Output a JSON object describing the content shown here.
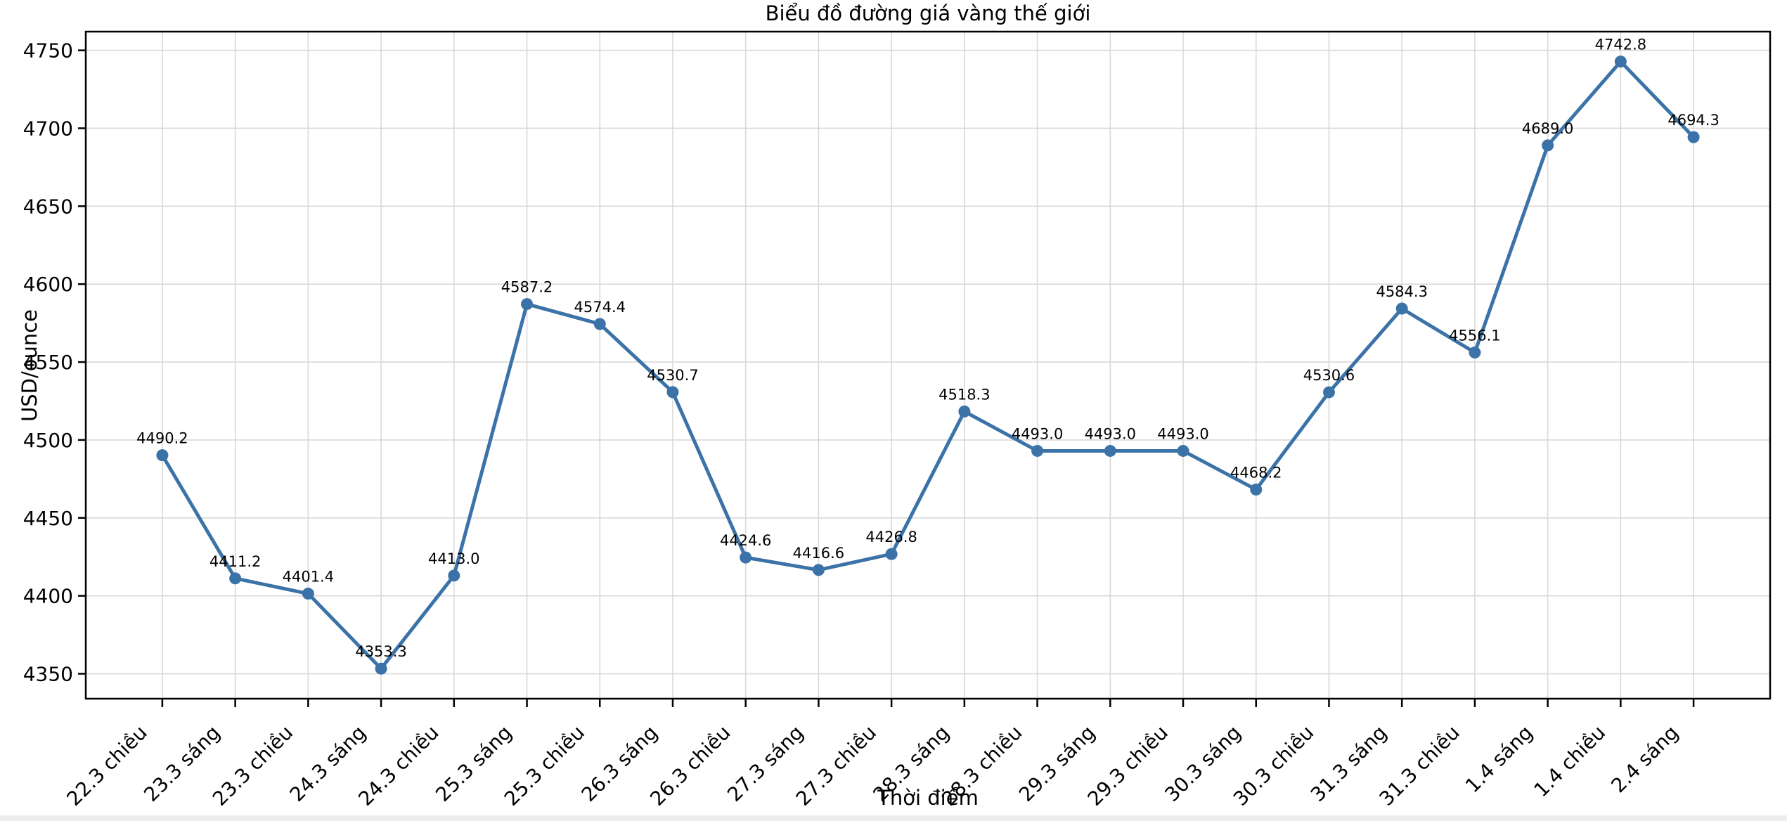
{
  "chart_data": {
    "type": "line",
    "title": "Biểu đồ đường giá vàng thế giới",
    "xlabel": "Thời điểm",
    "ylabel": "USD/ounce",
    "categories": [
      "22.3 chiều",
      "23.3 sáng",
      "23.3 chiều",
      "24.3 sáng",
      "24.3 chiều",
      "25.3 sáng",
      "25.3 chiều",
      "26.3 sáng",
      "26.3 chiều",
      "27.3 sáng",
      "27.3 chiều",
      "28.3 sáng",
      "28.3 chiều",
      "29.3 sáng",
      "29.3 chiều",
      "30.3 sáng",
      "30.3 chiều",
      "31.3 sáng",
      "31.3 chiều",
      "1.4 sáng",
      "1.4 chiều",
      "2.4 sáng"
    ],
    "values": [
      4490.2,
      4411.2,
      4401.4,
      4353.3,
      4413.0,
      4587.2,
      4574.4,
      4530.7,
      4424.6,
      4416.6,
      4426.8,
      4518.3,
      4493.0,
      4493.0,
      4493.0,
      4468.2,
      4530.6,
      4584.3,
      4556.1,
      4689.0,
      4742.8,
      4694.3
    ],
    "yticks": [
      4350,
      4400,
      4450,
      4500,
      4550,
      4600,
      4650,
      4700,
      4750
    ],
    "ylim": [
      4334,
      4762
    ],
    "grid": true,
    "legend": "none",
    "marker": "circle",
    "point_labels_decimals": 1,
    "colors": {
      "line": "#3b73a8",
      "marker": "#3b73a8",
      "grid": "#d9d9d9",
      "spine": "#000000",
      "text": "#000000"
    }
  }
}
